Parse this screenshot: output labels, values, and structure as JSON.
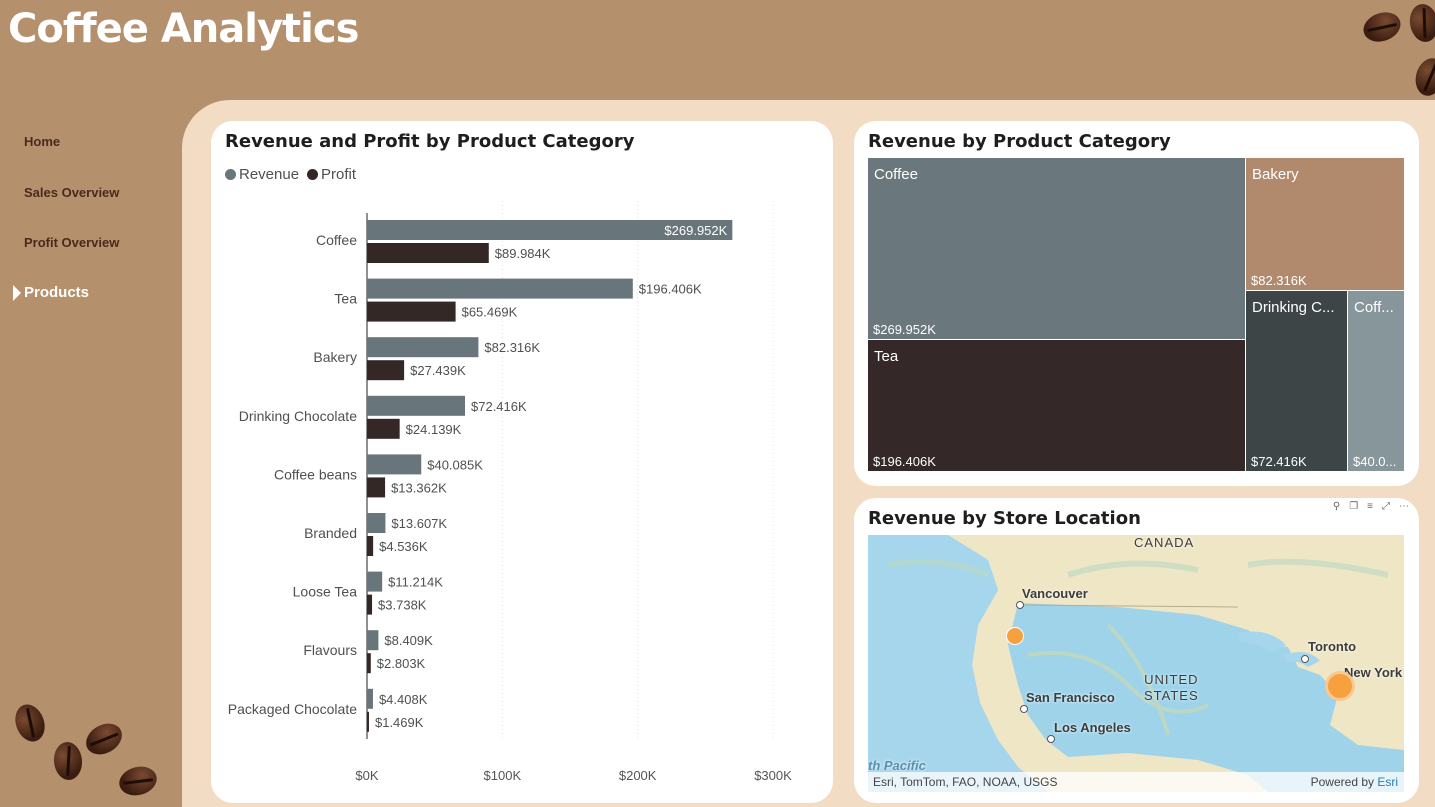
{
  "app_title": "Coffee Analytics",
  "nav": [
    {
      "label": "Home",
      "active": false
    },
    {
      "label": "Sales Overview",
      "active": false
    },
    {
      "label": "Profit Overview",
      "active": false
    },
    {
      "label": "Products",
      "active": true
    }
  ],
  "bar_card": {
    "title": "Revenue and Profit by Product Category",
    "legend": [
      {
        "label": "Revenue",
        "color": "#68767b"
      },
      {
        "label": "Profit",
        "color": "#342826"
      }
    ]
  },
  "treemap_card": {
    "title": "Revenue by Product Category",
    "cells": [
      {
        "name": "Coffee",
        "value": "$269.952K",
        "color": "#6a777c"
      },
      {
        "name": "Tea",
        "value": "$196.406K",
        "color": "#342828"
      },
      {
        "name": "Bakery",
        "value": "$82.316K",
        "color": "#b18a6e"
      },
      {
        "name": "Drinking C...",
        "value": "$72.416K",
        "color": "#3d4547"
      },
      {
        "name": "Coff...",
        "value": "$40.0...",
        "color": "#86969a"
      }
    ]
  },
  "map_card": {
    "title": "Revenue by Store Location",
    "labels": {
      "canada": "CANADA",
      "vancouver": "Vancouver",
      "toronto": "Toronto",
      "new_york": "New York",
      "united_states": "UNITED\nSTATES",
      "san_francisco": "San Francisco",
      "los_angeles": "Los Angeles",
      "pacific": "th Pacific"
    },
    "attribution": "Esri, TomTom, FAO, NOAA, USGS",
    "powered_prefix": "Powered by ",
    "powered_brand": "Esri",
    "tools": [
      "pin-icon",
      "copy-icon",
      "filter-icon",
      "focus-icon",
      "more-icon"
    ]
  },
  "chart_data": {
    "type": "bar",
    "orientation": "horizontal",
    "title": "Revenue and Profit by Product Category",
    "categories": [
      "Coffee",
      "Tea",
      "Bakery",
      "Drinking Chocolate",
      "Coffee beans",
      "Branded",
      "Loose Tea",
      "Flavours",
      "Packaged Chocolate"
    ],
    "series": [
      {
        "name": "Revenue",
        "color": "#68767b",
        "values": [
          269952,
          196406,
          82316,
          72416,
          40085,
          13607,
          11214,
          8409,
          4408
        ],
        "labels": [
          "$269.952K",
          "$196.406K",
          "$82.316K",
          "$72.416K",
          "$40.085K",
          "$13.607K",
          "$11.214K",
          "$8.409K",
          "$4.408K"
        ]
      },
      {
        "name": "Profit",
        "color": "#342826",
        "values": [
          89984,
          65469,
          27439,
          24139,
          13362,
          4536,
          3738,
          2803,
          1469
        ],
        "labels": [
          "$89.984K",
          "$65.469K",
          "$27.439K",
          "$24.139K",
          "$13.362K",
          "$4.536K",
          "$3.738K",
          "$2.803K",
          "$1.469K"
        ]
      }
    ],
    "x_ticks": [
      "$0K",
      "$100K",
      "$200K",
      "$300K"
    ],
    "xlim": [
      0,
      300000
    ],
    "grid": true,
    "legend_position": "top-left"
  }
}
